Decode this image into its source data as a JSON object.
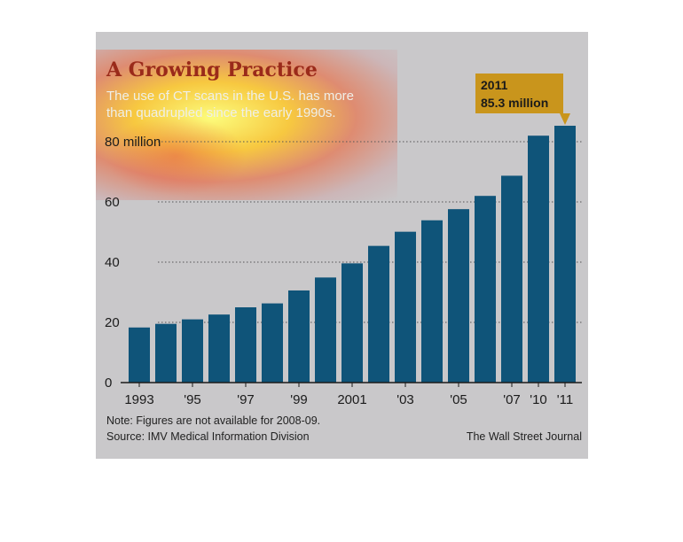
{
  "chart_data": {
    "type": "bar",
    "title": "A Growing Practice",
    "subtitle_lines": [
      "The use of CT scans in the U.S. has more",
      "than quadrupled since the early 1990s."
    ],
    "categories": [
      "1993",
      "1994",
      "1995",
      "1996",
      "1997",
      "1998",
      "1999",
      "2000",
      "2001",
      "2002",
      "2003",
      "2004",
      "2005",
      "2006",
      "2007",
      "2010",
      "2011"
    ],
    "x_tick_labels": [
      "1993",
      "",
      "'95",
      "",
      "'97",
      "",
      "'99",
      "",
      "2001",
      "",
      "'03",
      "",
      "'05",
      "",
      "'07",
      "'10",
      "'11"
    ],
    "values": [
      18.3,
      19.5,
      21.0,
      22.6,
      25.0,
      26.3,
      30.6,
      34.9,
      39.6,
      45.4,
      50.1,
      53.9,
      57.6,
      62.0,
      68.7,
      82.0,
      85.3
    ],
    "y_ticks": [
      0,
      20,
      40,
      60,
      80
    ],
    "y_tick_labels": [
      "0",
      "20",
      "40",
      "60",
      "80 million"
    ],
    "ylim": [
      0,
      90
    ],
    "grid": true,
    "bar_color": "#0f5479",
    "title_color": "#9a2a1a",
    "callout": {
      "year": "2011",
      "value_label": "85.3 million",
      "color": "#c9951c"
    },
    "note": "Note: Figures are not available for 2008-09.",
    "source": "Source: IMV Medical Information Division",
    "credit": "The Wall Street Journal"
  }
}
